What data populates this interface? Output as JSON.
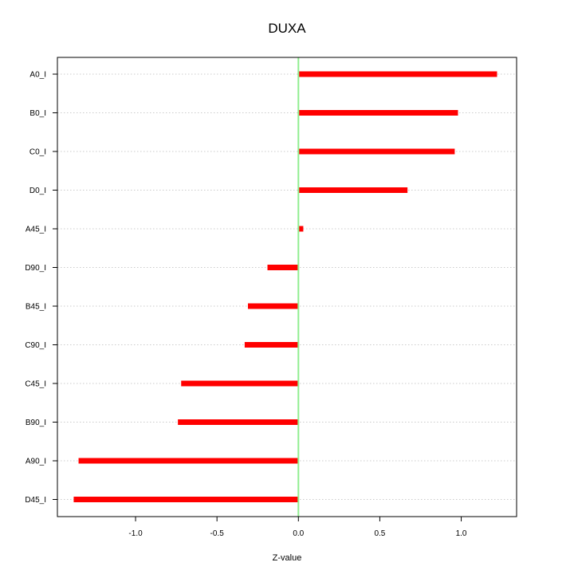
{
  "chart_data": {
    "type": "bar",
    "orientation": "horizontal",
    "title": "DUXA",
    "xlabel": "Z-value",
    "ylabel": "",
    "xlim": [
      -1.48,
      1.34
    ],
    "xticks": [
      -1.0,
      -0.5,
      0.0,
      0.5,
      1.0
    ],
    "xtick_labels": [
      "-1.0",
      "-0.5",
      "0.0",
      "0.5",
      "1.0"
    ],
    "categories": [
      "A0_I",
      "B0_I",
      "C0_I",
      "D0_I",
      "A45_I",
      "D90_I",
      "B45_I",
      "C90_I",
      "C45_I",
      "B90_I",
      "A90_I",
      "D45_I"
    ],
    "values": [
      1.22,
      0.98,
      0.96,
      0.67,
      0.03,
      -0.19,
      -0.31,
      -0.33,
      -0.72,
      -0.74,
      -1.35,
      -1.38
    ],
    "bar_color": "#ff0000",
    "zero_line_color": "#90ee90",
    "grid": "horizontal-dotted"
  }
}
